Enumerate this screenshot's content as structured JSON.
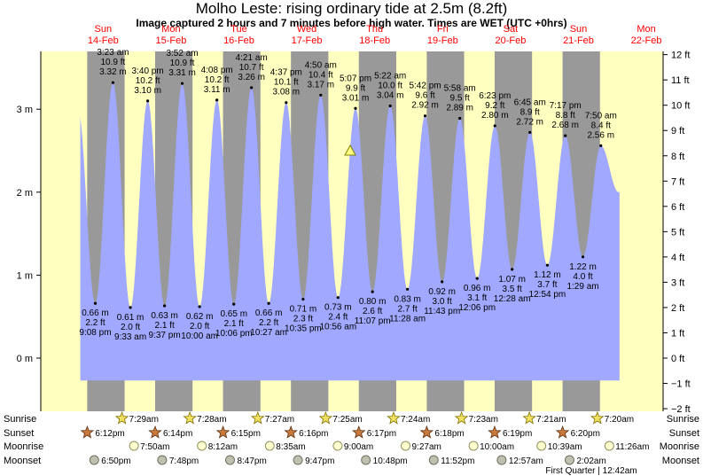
{
  "header": {
    "title": "Molho Leste: rising  ordinary tide at 2.5m (8.2ft)",
    "subtitle": "Image captured 2 hours and 7 minutes before high water. Times are WET (UTC +0hrs)"
  },
  "chart_data": {
    "type": "area",
    "left_axis": {
      "unit": "m",
      "ticks": [
        0,
        1,
        2,
        3
      ],
      "labels": [
        "0 m",
        "1 m",
        "2 m",
        "3 m"
      ],
      "range_m": [
        -0.3,
        3.2
      ]
    },
    "right_axis": {
      "unit": "ft",
      "ticks": [
        -2,
        -1,
        0,
        1,
        2,
        3,
        4,
        5,
        6,
        7,
        8,
        9,
        10,
        11,
        12
      ],
      "labels": [
        "−2 ft",
        "−1 ft",
        "0 ft",
        "1 ft",
        "2 ft",
        "3 ft",
        "4 ft",
        "5 ft",
        "6 ft",
        "7 ft",
        "8 ft",
        "9 ft",
        "10 ft",
        "11 ft",
        "12 ft"
      ]
    },
    "days": [
      {
        "name": "Sun",
        "date": "14-Feb"
      },
      {
        "name": "Mon",
        "date": "15-Feb"
      },
      {
        "name": "Tue",
        "date": "16-Feb"
      },
      {
        "name": "Wed",
        "date": "17-Feb"
      },
      {
        "name": "Thu",
        "date": "18-Feb"
      },
      {
        "name": "Fri",
        "date": "19-Feb"
      },
      {
        "name": "Sat",
        "date": "20-Feb"
      },
      {
        "name": "Sun",
        "date": "21-Feb"
      },
      {
        "name": "Mon",
        "date": "22-Feb"
      }
    ],
    "high_tides": [
      {
        "time": "3:23 am",
        "ft": "10.9 ft",
        "m": "3.32 m",
        "value": 3.32,
        "t": 1.141
      },
      {
        "time": "3:40 pm",
        "ft": "10.2 ft",
        "m": "3.10 m",
        "value": 3.1,
        "t": 1.653
      },
      {
        "time": "3:52 am",
        "ft": "10.9 ft",
        "m": "3.31 m",
        "value": 3.31,
        "t": 2.161
      },
      {
        "time": "4:08 pm",
        "ft": "10.2 ft",
        "m": "3.11 m",
        "value": 3.11,
        "t": 2.672
      },
      {
        "time": "4:21 am",
        "ft": "10.7 ft",
        "m": "3.26 m",
        "value": 3.26,
        "t": 3.181
      },
      {
        "time": "4:37 pm",
        "ft": "10.1 ft",
        "m": "3.08 m",
        "value": 3.08,
        "t": 3.692
      },
      {
        "time": "4:50 am",
        "ft": "10.4 ft",
        "m": "3.17 m",
        "value": 3.17,
        "t": 4.201
      },
      {
        "time": "5:07 pm",
        "ft": "9.9 ft",
        "m": "3.01 m",
        "value": 3.01,
        "t": 4.713
      },
      {
        "time": "5:22 am",
        "ft": "10.0 ft",
        "m": "3.04 m",
        "value": 3.04,
        "t": 5.224
      },
      {
        "time": "5:42 pm",
        "ft": "9.6 ft",
        "m": "2.92 m",
        "value": 2.92,
        "t": 5.738
      },
      {
        "time": "5:58 am",
        "ft": "9.5 ft",
        "m": "2.89 m",
        "value": 2.89,
        "t": 6.249
      },
      {
        "time": "6:23 pm",
        "ft": "9.2 ft",
        "m": "2.80 m",
        "value": 2.8,
        "t": 6.766
      },
      {
        "time": "6:45 am",
        "ft": "8.9 ft",
        "m": "2.72 m",
        "value": 2.72,
        "t": 7.281
      },
      {
        "time": "7:17 pm",
        "ft": "8.8 ft",
        "m": "2.68 m",
        "value": 2.68,
        "t": 7.803
      },
      {
        "time": "7:50 am",
        "ft": "8.4 ft",
        "m": "2.56 m",
        "value": 2.56,
        "t": 8.326
      }
    ],
    "low_tides": [
      {
        "time": "9:08 pm",
        "ft": "2.2 ft",
        "m": "0.66 m",
        "value": 0.66,
        "t": 0.881
      },
      {
        "time": "9:33 am",
        "ft": "2.0 ft",
        "m": "0.61 m",
        "value": 0.61,
        "t": 1.398
      },
      {
        "time": "9:37 pm",
        "ft": "2.1 ft",
        "m": "0.63 m",
        "value": 0.63,
        "t": 1.901
      },
      {
        "time": "10:00 am",
        "ft": "2.0 ft",
        "m": "0.62 m",
        "value": 0.62,
        "t": 2.417
      },
      {
        "time": "10:06 pm",
        "ft": "2.1 ft",
        "m": "0.65 m",
        "value": 0.65,
        "t": 2.921
      },
      {
        "time": "10:27 am",
        "ft": "2.2 ft",
        "m": "0.66 m",
        "value": 0.66,
        "t": 3.435
      },
      {
        "time": "10:35 pm",
        "ft": "2.3 ft",
        "m": "0.71 m",
        "value": 0.71,
        "t": 3.941
      },
      {
        "time": "10:56 am",
        "ft": "2.4 ft",
        "m": "0.73 m",
        "value": 0.73,
        "t": 4.456
      },
      {
        "time": "11:07 pm",
        "ft": "2.6 ft",
        "m": "0.80 m",
        "value": 0.8,
        "t": 4.963
      },
      {
        "time": "11:28 am",
        "ft": "2.7 ft",
        "m": "0.83 m",
        "value": 0.83,
        "t": 5.478
      },
      {
        "time": "11:43 pm",
        "ft": "3.0 ft",
        "m": "0.92 m",
        "value": 0.92,
        "t": 5.988
      },
      {
        "time": "12:06 pm",
        "ft": "3.1 ft",
        "m": "0.96 m",
        "value": 0.96,
        "t": 6.504
      },
      {
        "time": "12:28 am",
        "ft": "3.5 ft",
        "m": "1.07 m",
        "value": 1.07,
        "t": 7.019
      },
      {
        "time": "12:54 pm",
        "ft": "3.7 ft",
        "m": "1.12 m",
        "value": 1.12,
        "t": 7.538
      },
      {
        "time": "1:29 am",
        "ft": "4.0 ft",
        "m": "1.22 m",
        "value": 1.22,
        "t": 8.062
      }
    ],
    "sunrise": [
      "7:29am",
      "7:28am",
      "7:27am",
      "7:25am",
      "7:24am",
      "7:23am",
      "7:21am",
      "7:20am"
    ],
    "sunset": [
      "6:12pm",
      "6:14pm",
      "6:15pm",
      "6:16pm",
      "6:17pm",
      "6:18pm",
      "6:19pm",
      "6:20pm"
    ],
    "moonrise": [
      "7:50am",
      "8:12am",
      "8:35am",
      "9:00am",
      "9:27am",
      "10:00am",
      "10:39am",
      "11:26am"
    ],
    "moonset": [
      "6:50pm",
      "7:48pm",
      "8:47pm",
      "9:47pm",
      "10:48pm",
      "11:52pm",
      "12:57am",
      "2:02am"
    ],
    "moon_phase_note": "First Quarter | 12:42am",
    "row_labels": {
      "sunrise": "Sunrise",
      "sunset": "Sunset",
      "moonrise": "Moonrise",
      "moonset": "Moonset"
    },
    "current_level_m": 2.5,
    "current_level_ft": 8.2,
    "colors": {
      "day": "#ffffc0",
      "night": "#999999",
      "tide": "#a0a8ff",
      "weekday": "#ff0000",
      "marker": "#ffff80",
      "sunset": "#c87a3c"
    }
  }
}
